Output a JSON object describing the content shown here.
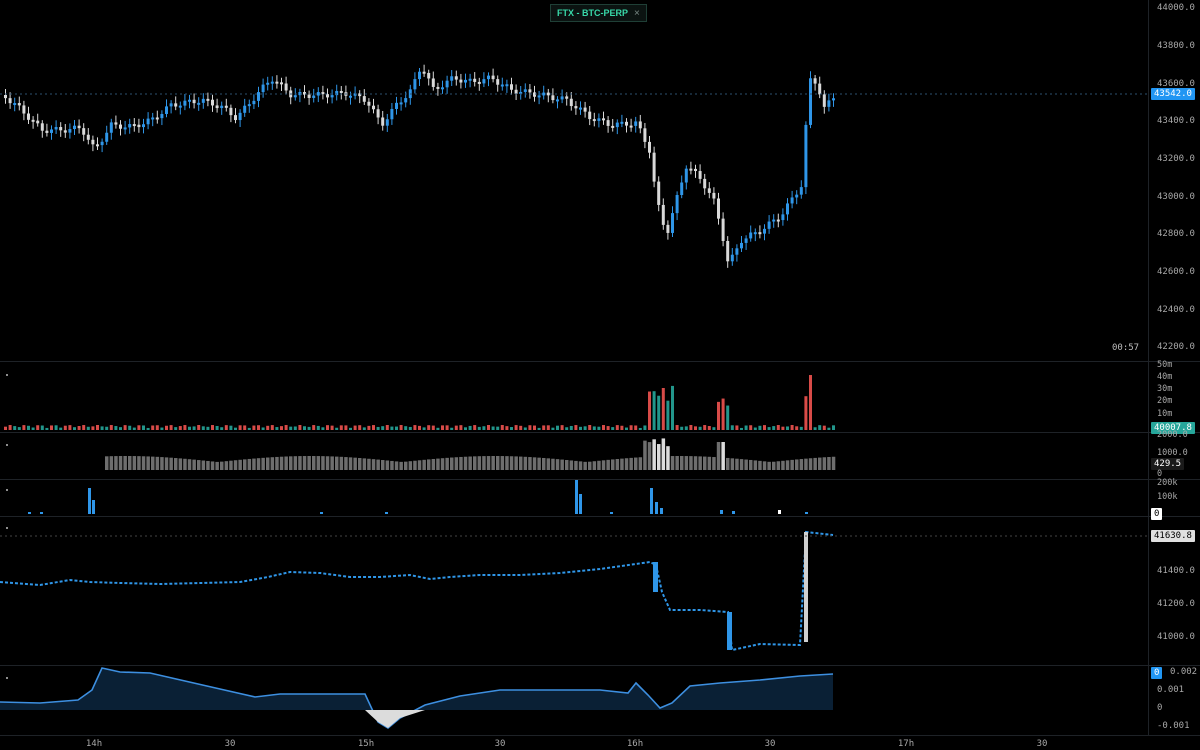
{
  "market": {
    "label": "FTX - BTC-PERP",
    "close_symbol": "×"
  },
  "countdown": "00:57",
  "price_axis": [
    "44000.0",
    "43800.0",
    "43600.0",
    "43400.0",
    "43200.0",
    "43000.0",
    "42800.0",
    "42600.0",
    "42400.0",
    "42200.0"
  ],
  "price_tag": "43542.0",
  "volume_axis": [
    "50m",
    "40m",
    "30m",
    "20m",
    "10m"
  ],
  "volume_tag": "40007.8",
  "trades_axis": [
    "2000.0",
    "1000.0",
    "0"
  ],
  "trades_tag": "429.5",
  "liq_axis": [
    "200k",
    "100k",
    "0"
  ],
  "liq_tag": "0",
  "cvd_axis": [
    "41400.0",
    "41200.0",
    "41000.0"
  ],
  "cvd_tag": "41630.8",
  "funding_axis": [
    "0.002",
    "0.001",
    "0",
    "-0.001"
  ],
  "funding_tag": "0",
  "time_axis": [
    "14h",
    "30",
    "15h",
    "30",
    "16h",
    "30",
    "17h",
    "30"
  ],
  "colors": {
    "up": "#2f96e8",
    "down": "#d9d9d9",
    "vol_buy": "#26a69a",
    "vol_sell": "#ef5350",
    "funding_line": "#3d8fe0",
    "funding_fill": "#0b2238",
    "tag_blue": "#2196f3",
    "tag_teal": "#26a69a"
  },
  "icons": {
    "close": "close-icon"
  }
}
